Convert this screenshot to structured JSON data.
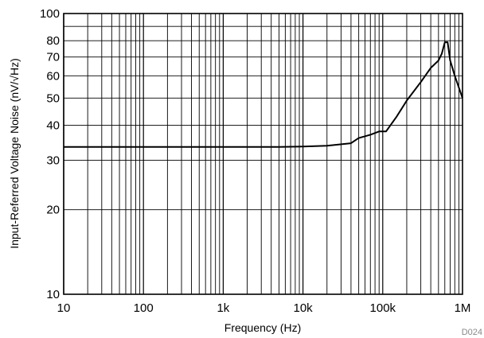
{
  "chart_data": {
    "type": "line",
    "title": "",
    "xlabel": "Frequency (Hz)",
    "ylabel": "Input-Referred Voltage Noise (nV/√Hz)",
    "xscale": "log",
    "yscale": "log",
    "xlim": [
      10,
      1000000
    ],
    "ylim": [
      10,
      100
    ],
    "grid": true,
    "x_tick_labels": [
      "10",
      "100",
      "1k",
      "10k",
      "100k",
      "1M"
    ],
    "x_tick_values": [
      10,
      100,
      1000,
      10000,
      100000,
      1000000
    ],
    "y_tick_labels": [
      "10",
      "20",
      "30",
      "40",
      "50",
      "60",
      "70",
      "80",
      "100"
    ],
    "y_tick_values": [
      10,
      20,
      30,
      40,
      50,
      60,
      70,
      80,
      100
    ],
    "series": [
      {
        "color": "#000000",
        "x": [
          10,
          100,
          1000,
          5000,
          10000,
          20000,
          40000,
          50000,
          70000,
          90000,
          100000,
          110000,
          150000,
          200000,
          300000,
          400000,
          500000,
          550000,
          600000,
          650000,
          700000,
          800000,
          1000000
        ],
        "y": [
          33.5,
          33.5,
          33.5,
          33.5,
          33.6,
          33.8,
          34.5,
          36,
          37,
          38,
          38,
          38,
          43,
          49,
          57,
          64,
          68,
          72,
          79,
          79,
          68,
          60,
          50
        ]
      }
    ],
    "figure_id": "D024"
  },
  "colors": {
    "axis": "#000000",
    "grid": "#000000",
    "line": "#000000",
    "figure_id": "#888888"
  }
}
